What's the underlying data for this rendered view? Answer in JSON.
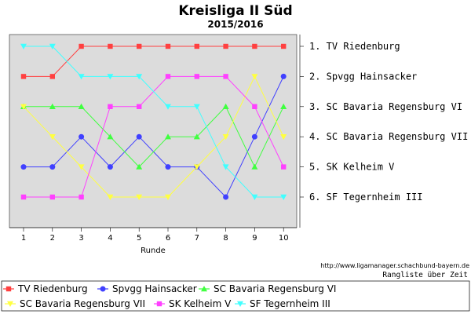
{
  "chart_data": {
    "type": "line",
    "title": "Kreisliga II Süd",
    "subtitle": "2015/2016",
    "xlabel": "Runde",
    "x": [
      1,
      2,
      3,
      4,
      5,
      6,
      7,
      8,
      9,
      10
    ],
    "ylim": [
      1,
      6
    ],
    "y_inverted": true,
    "grid": false,
    "rank_labels": [
      "1. TV Riedenburg",
      "2. Spvgg Hainsacker",
      "3. SC Bavaria Regensburg VI",
      "4. SC Bavaria Regensburg VII",
      "5. SK Kelheim V",
      "6. SF Tegernheim III"
    ],
    "series": [
      {
        "name": "TV Riedenburg",
        "color": "#ff4040",
        "marker": "square",
        "values": [
          2,
          2,
          1,
          1,
          1,
          1,
          1,
          1,
          1,
          1
        ]
      },
      {
        "name": "Spvgg Hainsacker",
        "color": "#4040ff",
        "marker": "circle",
        "values": [
          5,
          5,
          4,
          5,
          4,
          5,
          5,
          6,
          4,
          2
        ]
      },
      {
        "name": "SC Bavaria Regensburg VI",
        "color": "#40ff40",
        "marker": "triangle-up",
        "values": [
          3,
          3,
          3,
          4,
          5,
          4,
          4,
          3,
          5,
          3
        ]
      },
      {
        "name": "SC Bavaria Regensburg VII",
        "color": "#ffff40",
        "marker": "triangle-down",
        "values": [
          3,
          4,
          5,
          6,
          6,
          6,
          5,
          4,
          2,
          4
        ]
      },
      {
        "name": "SK Kelheim V",
        "color": "#ff40ff",
        "marker": "square",
        "values": [
          6,
          6,
          6,
          3,
          3,
          2,
          2,
          2,
          3,
          5
        ]
      },
      {
        "name": "SF Tegernheim III",
        "color": "#40ffff",
        "marker": "triangle-down",
        "values": [
          1,
          1,
          2,
          2,
          2,
          3,
          3,
          5,
          6,
          6
        ]
      }
    ]
  },
  "footer": {
    "url": "http://www.ligamanager.schachbund-bayern.de",
    "caption": "Rangliste über Zeit"
  }
}
